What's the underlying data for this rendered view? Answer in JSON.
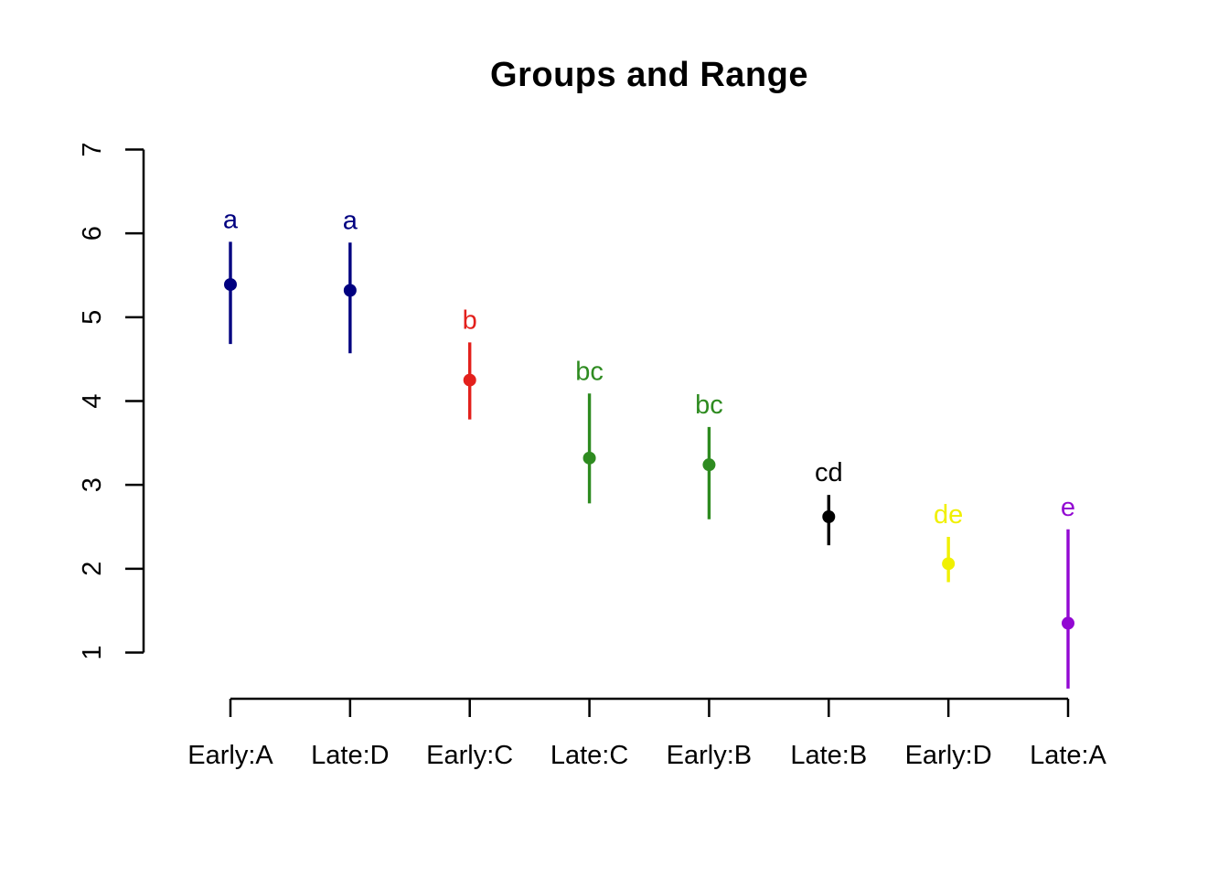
{
  "figure": {
    "title": "Groups and Range"
  },
  "chart_data": {
    "type": "pointrange",
    "title": "Groups and Range",
    "xlabel": "",
    "ylabel": "",
    "grid": false,
    "legend": false,
    "background": "#FFFFFF",
    "axis_color": "#000000",
    "yticks": [
      1,
      2,
      3,
      4,
      5,
      6,
      7
    ],
    "ylim": [
      0.5,
      7.05
    ],
    "categories": [
      "Early:A",
      "Late:D",
      "Early:C",
      "Late:C",
      "Early:B",
      "Late:B",
      "Early:D",
      "Late:A"
    ],
    "series": [
      {
        "category": "Early:A",
        "group_letter": "a",
        "mean": 5.39,
        "low": 4.68,
        "high": 5.9,
        "color": "#000080"
      },
      {
        "category": "Late:D",
        "group_letter": "a",
        "mean": 5.32,
        "low": 4.57,
        "high": 5.89,
        "color": "#000080"
      },
      {
        "category": "Early:C",
        "group_letter": "b",
        "mean": 4.25,
        "low": 3.78,
        "high": 4.7,
        "color": "#E3201C"
      },
      {
        "category": "Late:C",
        "group_letter": "bc",
        "mean": 3.32,
        "low": 2.78,
        "high": 4.09,
        "color": "#2E8B20"
      },
      {
        "category": "Early:B",
        "group_letter": "bc",
        "mean": 3.24,
        "low": 2.59,
        "high": 3.69,
        "color": "#2E8B20"
      },
      {
        "category": "Late:B",
        "group_letter": "cd",
        "mean": 2.62,
        "low": 2.28,
        "high": 2.88,
        "color": "#000000"
      },
      {
        "category": "Early:D",
        "group_letter": "de",
        "mean": 2.06,
        "low": 1.84,
        "high": 2.38,
        "color": "#F0F000"
      },
      {
        "category": "Late:A",
        "group_letter": "e",
        "mean": 1.35,
        "low": 0.57,
        "high": 2.47,
        "color": "#9208D2"
      }
    ]
  }
}
